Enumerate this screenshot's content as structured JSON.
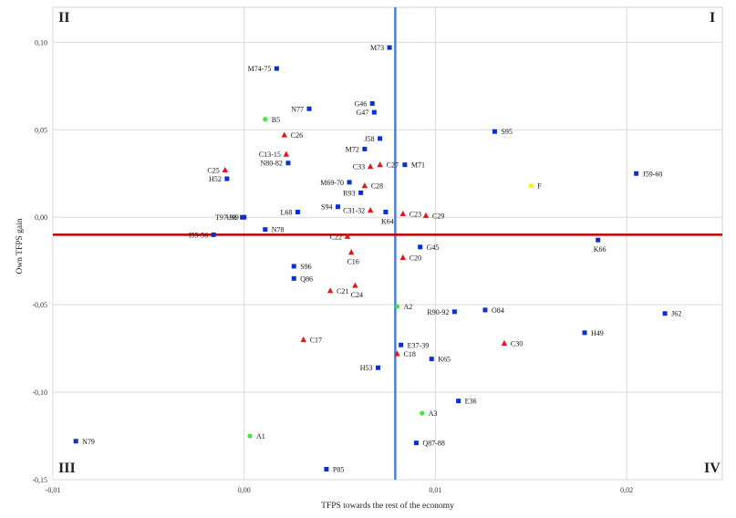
{
  "chart_data": {
    "type": "scatter",
    "title": "",
    "xlabel": "TFPS towards the rest of the economy",
    "ylabel": "Own TFPS gain",
    "xlim": [
      -0.01,
      0.025
    ],
    "ylim": [
      -0.15,
      0.12
    ],
    "xticks": [
      -0.01,
      0.0,
      0.01,
      0.02
    ],
    "xtick_labels": [
      "-0,01",
      "0,00",
      "0,01",
      "0,02"
    ],
    "yticks": [
      -0.15,
      -0.1,
      -0.05,
      0.0,
      0.05,
      0.1
    ],
    "ytick_labels": [
      "-0,15",
      "-0,10",
      "-0,05",
      "0,00",
      "0,05",
      "0,10"
    ],
    "grid": true,
    "reference_lines": {
      "vertical_x": 0.0079,
      "vertical_color": "#4a7fd4",
      "horizontal_y": -0.01,
      "horizontal_color": "#c00000"
    },
    "quadrants": {
      "q1": "I",
      "q2": "II",
      "q3": "III",
      "q4": "IV"
    },
    "colors": {
      "square": "#0b2fd1",
      "triangle": "#e01818",
      "green": "#3ee63e",
      "yellow": "#ffee22"
    },
    "points": [
      {
        "label": "M73",
        "x": 0.0076,
        "y": 0.097,
        "shape": "square"
      },
      {
        "label": "M74-75",
        "x": 0.0017,
        "y": 0.085,
        "shape": "square"
      },
      {
        "label": "N77",
        "x": 0.0034,
        "y": 0.062,
        "shape": "square"
      },
      {
        "label": "G46",
        "x": 0.0067,
        "y": 0.065,
        "shape": "square"
      },
      {
        "label": "G47",
        "x": 0.0068,
        "y": 0.06,
        "shape": "square"
      },
      {
        "label": "B5",
        "x": 0.0011,
        "y": 0.056,
        "shape": "green"
      },
      {
        "label": "C26",
        "x": 0.0021,
        "y": 0.047,
        "shape": "triangle"
      },
      {
        "label": "J58",
        "x": 0.0071,
        "y": 0.045,
        "shape": "square"
      },
      {
        "label": "S95",
        "x": 0.0131,
        "y": 0.049,
        "shape": "square"
      },
      {
        "label": "M72",
        "x": 0.0063,
        "y": 0.039,
        "shape": "square"
      },
      {
        "label": "C13-15",
        "x": 0.0022,
        "y": 0.036,
        "shape": "triangle"
      },
      {
        "label": "N80-82",
        "x": 0.0023,
        "y": 0.031,
        "shape": "square"
      },
      {
        "label": "M71",
        "x": 0.0084,
        "y": 0.03,
        "shape": "square"
      },
      {
        "label": "C25",
        "x": -0.001,
        "y": 0.027,
        "shape": "triangle"
      },
      {
        "label": "C27",
        "x": 0.0071,
        "y": 0.03,
        "shape": "triangle"
      },
      {
        "label": "C33",
        "x": 0.0066,
        "y": 0.029,
        "shape": "triangle"
      },
      {
        "label": "H52",
        "x": -0.0009,
        "y": 0.022,
        "shape": "square"
      },
      {
        "label": "M69-70",
        "x": 0.0055,
        "y": 0.02,
        "shape": "square"
      },
      {
        "label": "C28",
        "x": 0.0063,
        "y": 0.018,
        "shape": "triangle"
      },
      {
        "label": "R93",
        "x": 0.0061,
        "y": 0.014,
        "shape": "square"
      },
      {
        "label": "F",
        "x": 0.015,
        "y": 0.018,
        "shape": "yellow"
      },
      {
        "label": "J59-60",
        "x": 0.0205,
        "y": 0.025,
        "shape": "square"
      },
      {
        "label": "S94",
        "x": 0.0049,
        "y": 0.006,
        "shape": "square"
      },
      {
        "label": "C31-32",
        "x": 0.0066,
        "y": 0.004,
        "shape": "triangle"
      },
      {
        "label": "L68",
        "x": 0.0028,
        "y": 0.003,
        "shape": "square"
      },
      {
        "label": "K64",
        "x": 0.0074,
        "y": 0.003,
        "shape": "square"
      },
      {
        "label": "C23",
        "x": 0.0083,
        "y": 0.002,
        "shape": "triangle"
      },
      {
        "label": "C29",
        "x": 0.0095,
        "y": 0.001,
        "shape": "triangle"
      },
      {
        "label": "U99",
        "x": 0.0,
        "y": 0.0,
        "shape": "square"
      },
      {
        "label": "T97-98",
        "x": -0.0001,
        "y": 0.0,
        "shape": "square"
      },
      {
        "label": "N78",
        "x": 0.0011,
        "y": -0.007,
        "shape": "square"
      },
      {
        "label": "I55-56",
        "x": -0.0016,
        "y": -0.01,
        "shape": "square"
      },
      {
        "label": "C22",
        "x": 0.0054,
        "y": -0.011,
        "shape": "triangle"
      },
      {
        "label": "G45",
        "x": 0.0092,
        "y": -0.017,
        "shape": "square"
      },
      {
        "label": "K66",
        "x": 0.0185,
        "y": -0.013,
        "shape": "square"
      },
      {
        "label": "C16",
        "x": 0.0056,
        "y": -0.02,
        "shape": "triangle"
      },
      {
        "label": "C20",
        "x": 0.0083,
        "y": -0.023,
        "shape": "triangle"
      },
      {
        "label": "S96",
        "x": 0.0026,
        "y": -0.028,
        "shape": "square"
      },
      {
        "label": "Q86",
        "x": 0.0026,
        "y": -0.035,
        "shape": "square"
      },
      {
        "label": "C21",
        "x": 0.0045,
        "y": -0.042,
        "shape": "triangle"
      },
      {
        "label": "C24",
        "x": 0.0058,
        "y": -0.039,
        "shape": "triangle"
      },
      {
        "label": "A2",
        "x": 0.008,
        "y": -0.051,
        "shape": "green"
      },
      {
        "label": "R90-92",
        "x": 0.011,
        "y": -0.054,
        "shape": "square"
      },
      {
        "label": "O84",
        "x": 0.0126,
        "y": -0.053,
        "shape": "square"
      },
      {
        "label": "J62",
        "x": 0.022,
        "y": -0.055,
        "shape": "square"
      },
      {
        "label": "H49",
        "x": 0.0178,
        "y": -0.066,
        "shape": "square"
      },
      {
        "label": "C17",
        "x": 0.0031,
        "y": -0.07,
        "shape": "triangle"
      },
      {
        "label": "E37-39",
        "x": 0.0082,
        "y": -0.073,
        "shape": "square"
      },
      {
        "label": "C30",
        "x": 0.0136,
        "y": -0.072,
        "shape": "triangle"
      },
      {
        "label": "C18",
        "x": 0.008,
        "y": -0.078,
        "shape": "triangle"
      },
      {
        "label": "K65",
        "x": 0.0098,
        "y": -0.081,
        "shape": "square"
      },
      {
        "label": "H53",
        "x": 0.007,
        "y": -0.086,
        "shape": "square"
      },
      {
        "label": "E36",
        "x": 0.0112,
        "y": -0.105,
        "shape": "square"
      },
      {
        "label": "A3",
        "x": 0.0093,
        "y": -0.112,
        "shape": "green"
      },
      {
        "label": "N79",
        "x": -0.0088,
        "y": -0.128,
        "shape": "square"
      },
      {
        "label": "A1",
        "x": 0.0003,
        "y": -0.125,
        "shape": "green"
      },
      {
        "label": "Q87-88",
        "x": 0.009,
        "y": -0.129,
        "shape": "square"
      },
      {
        "label": "P85",
        "x": 0.0043,
        "y": -0.144,
        "shape": "square"
      }
    ]
  }
}
